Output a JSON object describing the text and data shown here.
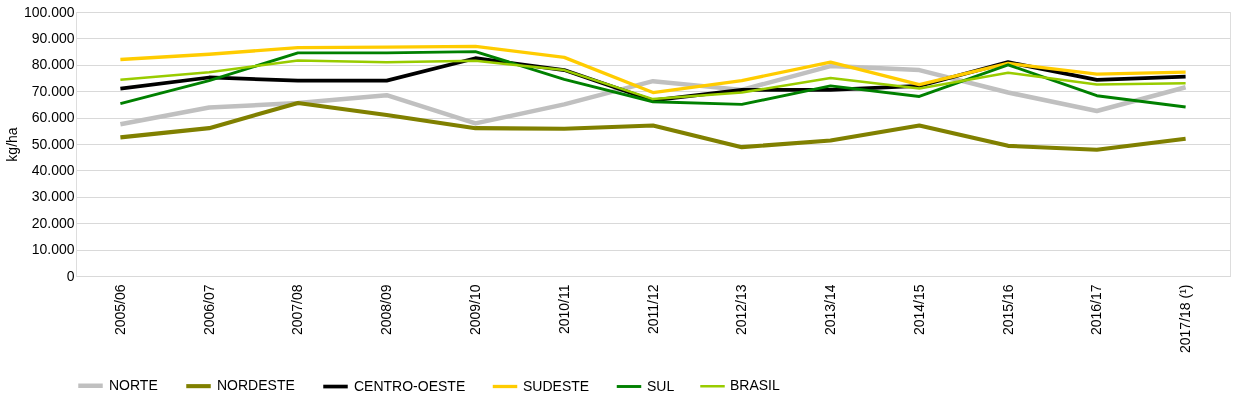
{
  "chart_data": {
    "type": "line",
    "ylabel": "kg/ha",
    "categories": [
      "2005/06",
      "2006/07",
      "2007/08",
      "2008/09",
      "2009/10",
      "2010/11",
      "2011/12",
      "2012/13",
      "2013/14",
      "2014/15",
      "2015/16",
      "2016/17",
      "2017/18 (¹)"
    ],
    "series": [
      {
        "name": "NORTE",
        "color": "#c0c0c0",
        "values": [
          57500,
          63800,
          65500,
          68500,
          57800,
          65000,
          73800,
          70500,
          79500,
          78000,
          69500,
          62500,
          71500
        ]
      },
      {
        "name": "NORDESTE",
        "color": "#808000",
        "values": [
          52500,
          56000,
          65500,
          61000,
          56000,
          55800,
          57000,
          48800,
          51300,
          57000,
          49300,
          47800,
          52000
        ]
      },
      {
        "name": "CENTRO-OESTE",
        "color": "#000000",
        "values": [
          71000,
          75200,
          74000,
          74000,
          82500,
          78000,
          66500,
          70500,
          70500,
          72000,
          81000,
          74300,
          75500
        ]
      },
      {
        "name": "SUDESTE",
        "color": "#ffcc00",
        "values": [
          82000,
          84000,
          86500,
          86700,
          87000,
          82800,
          69500,
          74000,
          81000,
          72500,
          80500,
          76500,
          77200
        ]
      },
      {
        "name": "SUL",
        "color": "#008000",
        "values": [
          65300,
          74000,
          84500,
          84500,
          85000,
          74500,
          66000,
          65000,
          72000,
          68000,
          80000,
          68300,
          64000
        ]
      },
      {
        "name": "BRASIL",
        "color": "#99cc00",
        "values": [
          74300,
          77200,
          81600,
          81000,
          81500,
          78000,
          67000,
          69500,
          75000,
          71000,
          77000,
          72500,
          73000
        ]
      }
    ],
    "ylim": [
      0,
      100000
    ],
    "yticks": [
      0,
      {
        "value": 10000,
        "label": "10.000"
      },
      {
        "value": 20000,
        "label": "20.000"
      },
      {
        "value": 30000,
        "label": "30.000"
      },
      {
        "value": 40000,
        "label": "40.000"
      },
      {
        "value": 50000,
        "label": "50.000"
      },
      {
        "value": 60000,
        "label": "60.000"
      },
      {
        "value": 70000,
        "label": "70.000"
      },
      {
        "value": 80000,
        "label": "80.000"
      },
      {
        "value": 90000,
        "label": "90.000"
      },
      {
        "value": 100000,
        "label": "100.000"
      }
    ],
    "grid": "y",
    "legend": "bottom",
    "marker": "none",
    "line_style": "solid"
  }
}
